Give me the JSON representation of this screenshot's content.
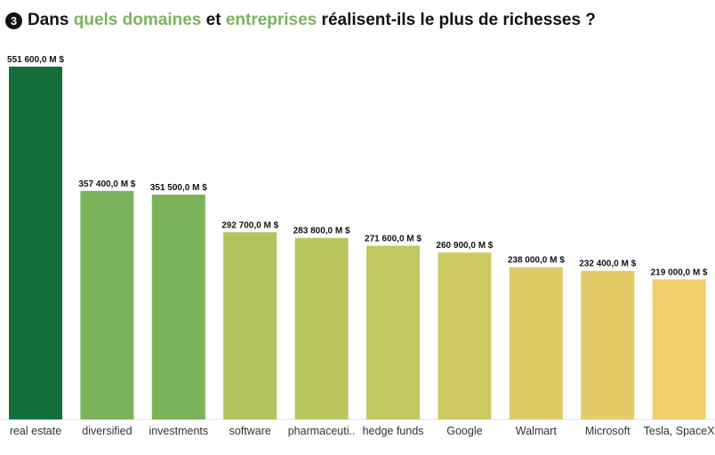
{
  "title": {
    "number": "3",
    "segments": [
      {
        "text": "Dans ",
        "highlight": false
      },
      {
        "text": "quels domaines",
        "highlight": true
      },
      {
        "text": " et ",
        "highlight": false
      },
      {
        "text": "entreprises",
        "highlight": true
      },
      {
        "text": " réalisent-ils le plus de richesses ?",
        "highlight": false
      }
    ]
  },
  "colors": {
    "highlight": "#7ab55c"
  },
  "chart_data": {
    "type": "bar",
    "categories": [
      "real estate",
      "diversified",
      "investments",
      "software",
      "pharmaceuti..",
      "hedge funds",
      "Google",
      "Walmart",
      "Microsoft",
      "Tesla, SpaceX"
    ],
    "values": [
      551600,
      357400,
      351500,
      292700,
      283800,
      271600,
      260900,
      238000,
      232400,
      219000
    ],
    "value_labels": [
      "551 600,0 M $",
      "357 400,0 M $",
      "351 500,0 M $",
      "292 700,0 M $",
      "283 800,0 M $",
      "271 600,0 M $",
      "260 900,0 M $",
      "238 000,0 M $",
      "232 400,0 M $",
      "219 000,0 M $"
    ],
    "colors": [
      "#146e3a",
      "#7bb35b",
      "#7bb35b",
      "#b3c45e",
      "#bac660",
      "#c2c862",
      "#cdc962",
      "#dec965",
      "#e4cb67",
      "#f1ce69"
    ],
    "ylim": [
      0,
      551600
    ],
    "grid": false,
    "legend": "none"
  }
}
